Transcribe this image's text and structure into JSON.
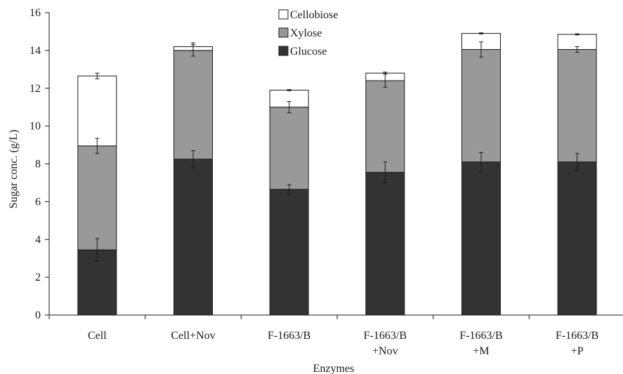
{
  "chart_data": {
    "type": "bar",
    "stacked": true,
    "title": "",
    "xlabel": "Enzymes",
    "ylabel": "Sugar conc. (g/L)",
    "ylim": [
      0,
      16
    ],
    "yticks": [
      "0",
      "2",
      "4",
      "6",
      "8",
      "10",
      "12",
      "14",
      "16"
    ],
    "grid": false,
    "legend_position": "top-center",
    "categories": [
      [
        "Cell"
      ],
      [
        "Cell+Nov"
      ],
      [
        "F-1663/B"
      ],
      [
        "F-1663/B",
        "+Nov"
      ],
      [
        "F-1663/B",
        "+M"
      ],
      [
        "F-1663/B",
        "+P"
      ]
    ],
    "series": [
      {
        "name": "Glucose",
        "color": "#333333",
        "values": [
          3.45,
          8.25,
          6.65,
          7.55,
          8.1,
          8.1
        ],
        "errors": [
          0.6,
          0.45,
          0.25,
          0.55,
          0.5,
          0.45
        ]
      },
      {
        "name": "Xylose",
        "color": "#999999",
        "values": [
          5.5,
          5.75,
          4.35,
          4.85,
          5.95,
          5.95
        ],
        "errors": [
          0.4,
          0.3,
          0.3,
          0.35,
          0.4,
          0.15
        ]
      },
      {
        "name": "Cellobiose",
        "color": "#ffffff",
        "values": [
          3.7,
          0.2,
          0.9,
          0.4,
          0.85,
          0.8
        ],
        "errors": [
          0.15,
          0.2,
          0.03,
          0.05,
          0.03,
          0.03
        ]
      }
    ]
  }
}
